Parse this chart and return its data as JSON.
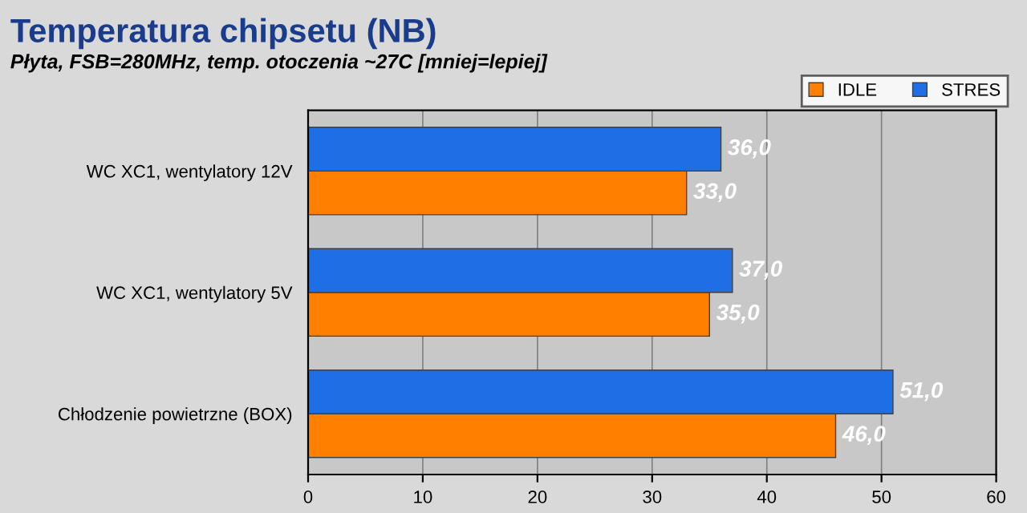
{
  "chart_data": {
    "type": "bar",
    "orientation": "horizontal",
    "title": "Temperatura chipsetu (NB)",
    "subtitle": "Płyta, FSB=280MHz, temp. otoczenia ~27C [mniej=lepiej]",
    "categories": [
      "WC XC1, wentylatory 12V",
      "WC XC1, wentylatory 5V",
      "Chłodzenie powietrzne (BOX)"
    ],
    "series": [
      {
        "name": "IDLE",
        "color": "#ff8000",
        "values": [
          33.0,
          35.0,
          46.0
        ],
        "value_labels": [
          "33,0",
          "35,0",
          "46,0"
        ]
      },
      {
        "name": "STRES",
        "color": "#1e6ee6",
        "values": [
          36.0,
          37.0,
          51.0
        ],
        "value_labels": [
          "36,0",
          "37,0",
          "51,0"
        ]
      }
    ],
    "xlim": [
      0,
      60
    ],
    "xticks": [
      0,
      10,
      20,
      30,
      40,
      50,
      60
    ],
    "grid": "x",
    "legend": "top right"
  }
}
